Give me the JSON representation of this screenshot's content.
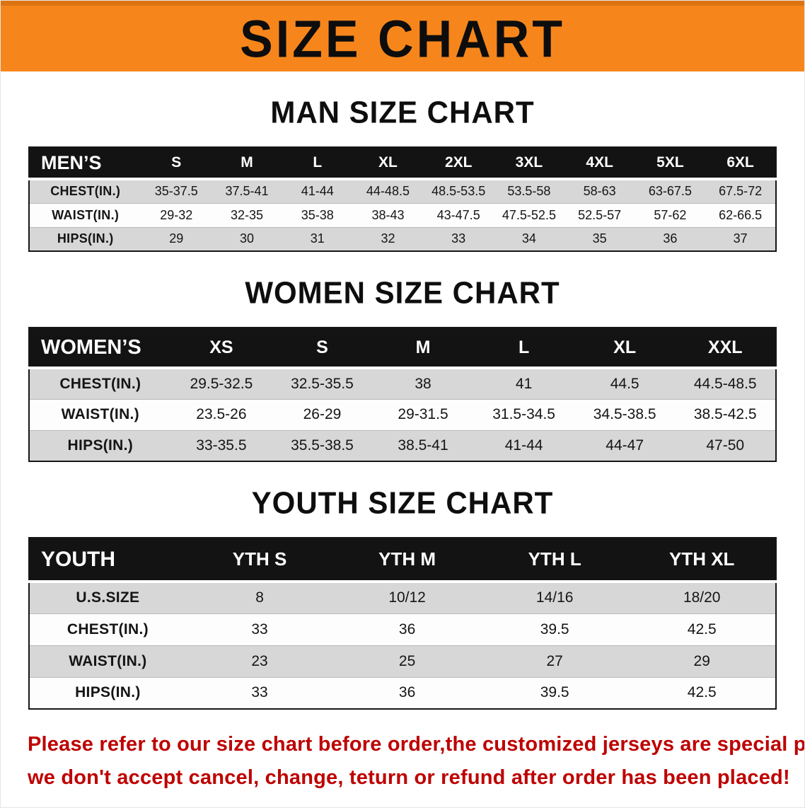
{
  "banner": {
    "title": "SIZE CHART"
  },
  "colors": {
    "banner_orange": "#F6861C",
    "table_header_black": "#131313",
    "row_gray": "#D7D7D7",
    "disclaimer_red": "#BE0000"
  },
  "sections": [
    {
      "heading": "MAN SIZE CHART",
      "table": {
        "header": [
          "MEN’S",
          "S",
          "M",
          "L",
          "XL",
          "2XL",
          "3XL",
          "4XL",
          "5XL",
          "6XL"
        ],
        "rows": [
          {
            "label": "CHEST(IN.)",
            "values": [
              "35-37.5",
              "37.5-41",
              "41-44",
              "44-48.5",
              "48.5-53.5",
              "53.5-58",
              "58-63",
              "63-67.5",
              "67.5-72"
            ]
          },
          {
            "label": "WAIST(IN.)",
            "values": [
              "29-32",
              "32-35",
              "35-38",
              "38-43",
              "43-47.5",
              "47.5-52.5",
              "52.5-57",
              "57-62",
              "62-66.5"
            ]
          },
          {
            "label": "HIPS(IN.)",
            "values": [
              "29",
              "30",
              "31",
              "32",
              "33",
              "34",
              "35",
              "36",
              "37"
            ]
          }
        ]
      }
    },
    {
      "heading": "WOMEN SIZE CHART",
      "table": {
        "header": [
          "WOMEN’S",
          "XS",
          "S",
          "M",
          "L",
          "XL",
          "XXL"
        ],
        "rows": [
          {
            "label": "CHEST(IN.)",
            "values": [
              "29.5-32.5",
              "32.5-35.5",
              "38",
              "41",
              "44.5",
              "44.5-48.5"
            ]
          },
          {
            "label": "WAIST(IN.)",
            "values": [
              "23.5-26",
              "26-29",
              "29-31.5",
              "31.5-34.5",
              "34.5-38.5",
              "38.5-42.5"
            ]
          },
          {
            "label": "HIPS(IN.)",
            "values": [
              "33-35.5",
              "35.5-38.5",
              "38.5-41",
              "41-44",
              "44-47",
              "47-50"
            ]
          }
        ]
      }
    },
    {
      "heading": "YOUTH SIZE CHART",
      "table": {
        "header": [
          "YOUTH",
          "YTH S",
          "YTH M",
          "YTH L",
          "YTH XL"
        ],
        "rows": [
          {
            "label": "U.S.SIZE",
            "values": [
              "8",
              "10/12",
              "14/16",
              "18/20"
            ]
          },
          {
            "label": "CHEST(IN.)",
            "values": [
              "33",
              "36",
              "39.5",
              "42.5"
            ]
          },
          {
            "label": "WAIST(IN.)",
            "values": [
              "23",
              "25",
              "27",
              "29"
            ]
          },
          {
            "label": "HIPS(IN.)",
            "values": [
              "33",
              "36",
              "39.5",
              "42.5"
            ]
          }
        ]
      }
    }
  ],
  "disclaimer": {
    "line1": "Please refer to our size chart before order,the customized jerseys are special products,",
    "line2": "we don't accept cancel, change, teturn or refund after order has been placed!"
  }
}
